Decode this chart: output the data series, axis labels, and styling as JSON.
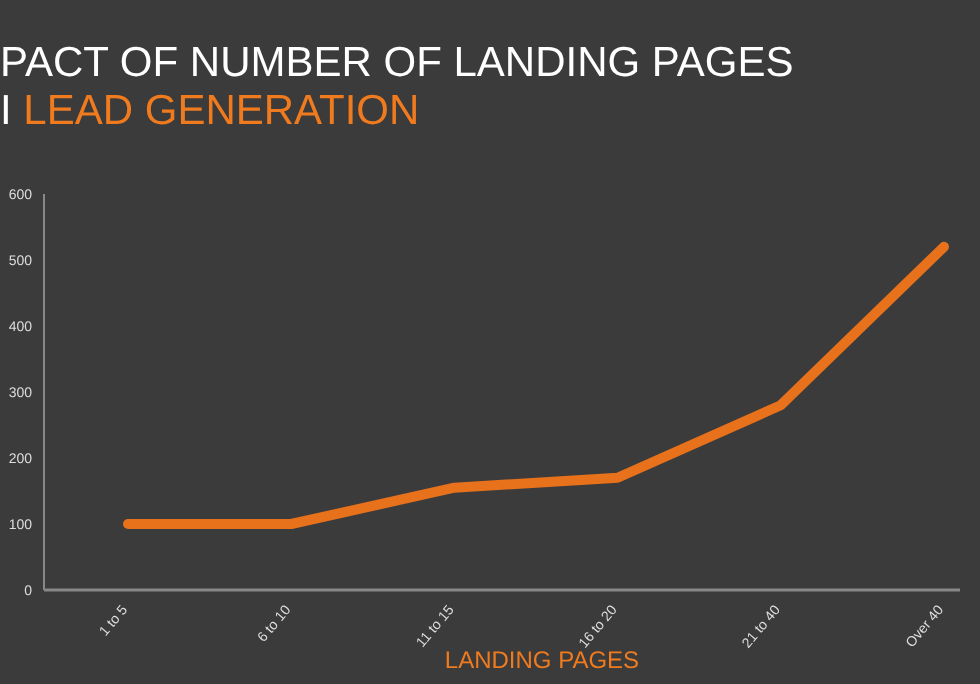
{
  "chart_data": {
    "type": "line",
    "title": "PACT OF NUMBER OF LANDING PAGES",
    "subtitle": "I LEAD GENERATION",
    "xlabel": "LANDING PAGES",
    "categories": [
      "1 to 5",
      "6 to 10",
      "11 to 15",
      "16 to 20",
      "21 to 40",
      "Over 40"
    ],
    "series": [
      {
        "color": "#e8711c",
        "values": [
          100,
          100,
          155,
          170,
          280,
          520
        ]
      }
    ],
    "ylim": [
      0,
      600
    ],
    "yticks": [
      0,
      100,
      200,
      300,
      400,
      500,
      600
    ],
    "grid": false,
    "marker": "none",
    "line_style": "solid"
  }
}
